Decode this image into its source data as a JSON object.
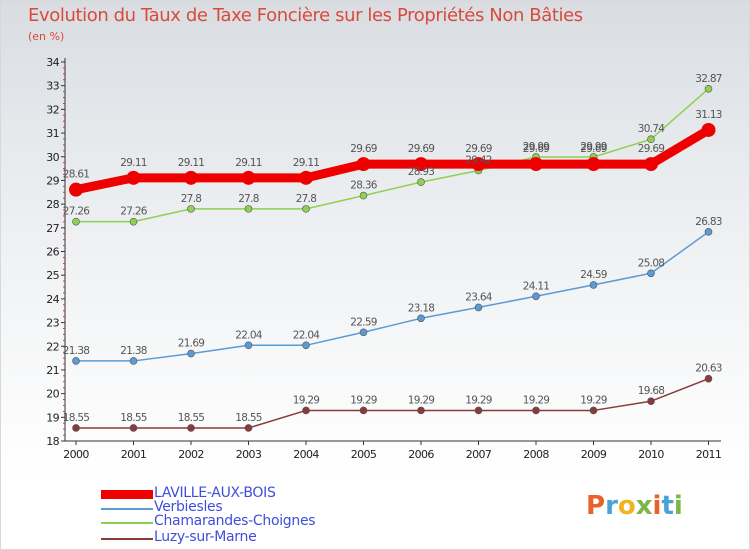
{
  "title": "Evolution du Taux de Taxe Foncière sur les Propriétés Non Bâties",
  "unit": "(en %)",
  "logo": {
    "text": "Proxiti",
    "colors": [
      "#e8632b",
      "#4aa3d6",
      "#f0b323",
      "#7ab648",
      "#e8632b",
      "#4aa3d6",
      "#7ab648"
    ]
  },
  "chart_data": {
    "type": "line",
    "x": [
      "2000",
      "2001",
      "2002",
      "2003",
      "2004",
      "2005",
      "2006",
      "2007",
      "2008",
      "2009",
      "2010",
      "2011"
    ],
    "ylim": [
      18,
      34
    ],
    "yticks": [
      18,
      19,
      20,
      21,
      22,
      23,
      24,
      25,
      26,
      27,
      28,
      29,
      30,
      31,
      32,
      33,
      34
    ],
    "grid": false,
    "legend_position": "bottom-left",
    "series": [
      {
        "name": "LAVILLE-AUX-BOIS",
        "color": "#ee0000",
        "values": [
          28.61,
          29.11,
          29.11,
          29.11,
          29.11,
          29.69,
          29.69,
          29.69,
          29.69,
          29.69,
          29.69,
          31.13
        ],
        "labels": [
          "28.61",
          "29.11",
          "29.11",
          "29.11",
          "29.11",
          "29.69",
          "29.69",
          "29.69",
          "29.69",
          "29.69",
          "29.69",
          "31.13"
        ]
      },
      {
        "name": "Verbiesles",
        "color": "#5b9bd5",
        "values": [
          21.38,
          21.38,
          21.69,
          22.04,
          22.04,
          22.59,
          23.18,
          23.64,
          24.11,
          24.59,
          25.08,
          26.83
        ],
        "labels": [
          "21.38",
          "21.38",
          "21.69",
          "22.04",
          "22.04",
          "22.59",
          "23.18",
          "23.64",
          "24.11",
          "24.59",
          "25.08",
          "26.83"
        ]
      },
      {
        "name": "Chamarandes-Choignes",
        "color": "#8ed050",
        "values": [
          27.26,
          27.26,
          27.8,
          27.8,
          27.8,
          28.36,
          28.93,
          29.42,
          29.99,
          29.99,
          30.74,
          32.87
        ],
        "labels": [
          "27.26",
          "27.26",
          "27.8",
          "27.8",
          "27.8",
          "28.36",
          "28.93",
          "29.42",
          "29.99",
          "29.99",
          "30.74",
          "32.87"
        ]
      },
      {
        "name": "Luzy-sur-Marne",
        "color": "#8b3a3a",
        "values": [
          18.55,
          18.55,
          18.55,
          18.55,
          19.29,
          19.29,
          19.29,
          19.29,
          19.29,
          19.29,
          19.68,
          20.63
        ],
        "labels": [
          "18.55",
          "18.55",
          "18.55",
          "18.55",
          "19.29",
          "19.29",
          "19.29",
          "19.29",
          "19.29",
          "19.29",
          "19.68",
          "20.63"
        ]
      }
    ]
  }
}
